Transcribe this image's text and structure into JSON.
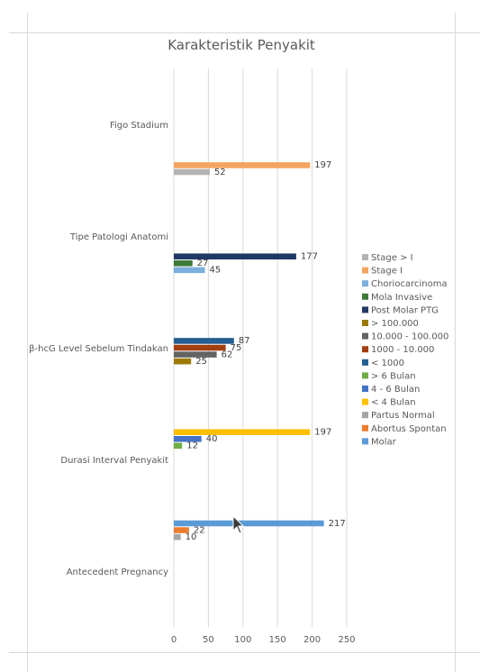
{
  "chart_data": {
    "type": "bar",
    "orientation": "horizontal",
    "title": "Karakteristik Penyakit",
    "xlabel": "",
    "ylabel": "",
    "xlim": [
      0,
      250
    ],
    "xticks": [
      "0",
      "50",
      "100",
      "150",
      "200",
      "250"
    ],
    "grid": true,
    "legend_position": "right",
    "categories": [
      "Figo Stadium",
      "Tipe Patologi Anatomi",
      "β-hcG Level Sebelum Tindakan",
      "Durasi Interval Penyakit",
      "Antecedent Pregnancy"
    ],
    "series": [
      {
        "name": "Stage > I",
        "color": "#b3b3b3",
        "values": [
          52,
          null,
          null,
          null,
          null
        ]
      },
      {
        "name": "Stage I",
        "color": "#f4a460",
        "values": [
          197,
          null,
          null,
          null,
          null
        ]
      },
      {
        "name": "Choriocarcinoma",
        "color": "#7cafdd",
        "values": [
          null,
          45,
          null,
          null,
          null
        ]
      },
      {
        "name": "Mola Invasive",
        "color": "#3f7a3a",
        "values": [
          null,
          27,
          null,
          null,
          null
        ]
      },
      {
        "name": "Post Molar PTG",
        "color": "#203864",
        "values": [
          null,
          177,
          null,
          null,
          null
        ]
      },
      {
        "name": "> 100.000",
        "color": "#9c7a00",
        "values": [
          null,
          null,
          25,
          null,
          null
        ]
      },
      {
        "name": "10.000 - 100.000",
        "color": "#636363",
        "values": [
          null,
          null,
          62,
          null,
          null
        ]
      },
      {
        "name": "1000 - 10.000",
        "color": "#a33f0f",
        "values": [
          null,
          null,
          75,
          null,
          null
        ]
      },
      {
        "name": "< 1000",
        "color": "#255e91",
        "values": [
          null,
          null,
          87,
          null,
          null
        ]
      },
      {
        "name": "> 6 Bulan",
        "color": "#70ad47",
        "values": [
          null,
          null,
          null,
          12,
          null
        ]
      },
      {
        "name": "4 - 6 Bulan",
        "color": "#4472c4",
        "values": [
          null,
          null,
          null,
          40,
          null
        ]
      },
      {
        "name": "< 4 Bulan",
        "color": "#ffc000",
        "values": [
          null,
          null,
          null,
          197,
          null
        ]
      },
      {
        "name": "Partus Normal",
        "color": "#a5a5a5",
        "values": [
          null,
          null,
          null,
          null,
          10
        ]
      },
      {
        "name": "Abortus Spontan",
        "color": "#ed7d31",
        "values": [
          null,
          null,
          null,
          null,
          22
        ]
      },
      {
        "name": "Molar",
        "color": "#5b9bd5",
        "values": [
          null,
          null,
          null,
          null,
          217
        ]
      }
    ]
  }
}
